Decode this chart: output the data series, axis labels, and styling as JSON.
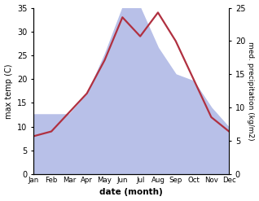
{
  "months": [
    "Jan",
    "Feb",
    "Mar",
    "Apr",
    "May",
    "Jun",
    "Jul",
    "Aug",
    "Sep",
    "Oct",
    "Nov",
    "Dec"
  ],
  "temperature": [
    8,
    9,
    13,
    17,
    24,
    33,
    29,
    34,
    28,
    20,
    12,
    9
  ],
  "precipitation": [
    9,
    9,
    9,
    12,
    18,
    25,
    25,
    19,
    15,
    14,
    10,
    7
  ],
  "temp_color": "#b03040",
  "precip_color_fill": "#b8c0e8",
  "title": "",
  "xlabel": "date (month)",
  "ylabel_left": "max temp (C)",
  "ylabel_right": "med. precipitation (kg/m2)",
  "ylim_left": [
    0,
    35
  ],
  "ylim_right": [
    0,
    25
  ],
  "yticks_left": [
    0,
    5,
    10,
    15,
    20,
    25,
    30,
    35
  ],
  "yticks_right": [
    0,
    5,
    10,
    15,
    20,
    25
  ],
  "bg_color": "#ffffff",
  "line_width": 1.6
}
